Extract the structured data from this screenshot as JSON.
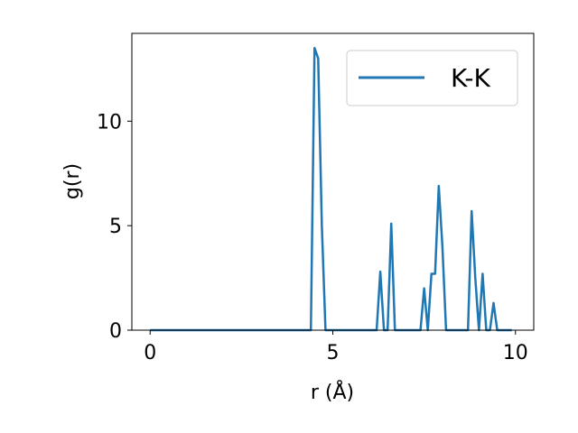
{
  "chart_data": {
    "type": "line",
    "xlabel": "r (Å)",
    "ylabel": "g(r)",
    "xlim": [
      -0.5,
      10.5
    ],
    "ylim": [
      0,
      14.2
    ],
    "xticks": [
      0,
      5,
      10
    ],
    "yticks": [
      0,
      5,
      10
    ],
    "grid": false,
    "legend_position": "top-right",
    "series": [
      {
        "name": "K-K",
        "color": "#1f77b4",
        "x": [
          0.0,
          4.4,
          4.5,
          4.6,
          4.7,
          4.8,
          5.0,
          6.2,
          6.3,
          6.4,
          6.5,
          6.6,
          6.7,
          7.4,
          7.5,
          7.6,
          7.7,
          7.8,
          7.9,
          8.0,
          8.1,
          8.2,
          8.7,
          8.8,
          8.9,
          9.0,
          9.1,
          9.2,
          9.3,
          9.4,
          9.5,
          9.9
        ],
        "y": [
          0.0,
          0.0,
          13.5,
          13.0,
          5.0,
          0.0,
          0.0,
          0.0,
          2.8,
          0.0,
          0.0,
          5.1,
          0.0,
          0.0,
          2.0,
          0.0,
          2.7,
          2.7,
          6.9,
          4.0,
          0.0,
          0.0,
          0.0,
          5.7,
          2.5,
          0.0,
          2.7,
          0.0,
          0.0,
          1.3,
          0.0,
          0.0
        ]
      }
    ]
  }
}
